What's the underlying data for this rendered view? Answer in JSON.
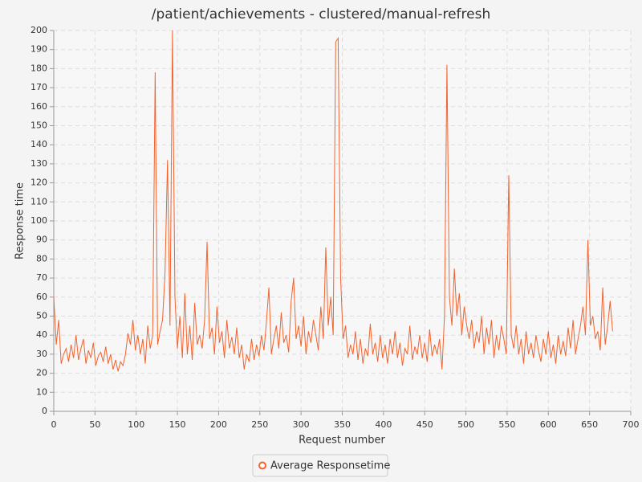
{
  "chart_data": {
    "type": "line",
    "title": "/patient/achievements - clustered/manual-refresh",
    "x_label": "Request number",
    "y_label": "Response time",
    "xlim": [
      0,
      700
    ],
    "xticks": [
      0,
      50,
      100,
      150,
      200,
      250,
      300,
      350,
      400,
      450,
      500,
      550,
      600,
      650,
      700
    ],
    "ylim": [
      0,
      200
    ],
    "yticks": [
      0,
      10,
      20,
      30,
      40,
      50,
      60,
      70,
      80,
      90,
      100,
      110,
      120,
      130,
      140,
      150,
      160,
      170,
      180,
      190,
      200
    ],
    "grid": true,
    "legend": "bottom",
    "x": [
      0,
      3,
      6,
      9,
      12,
      15,
      18,
      21,
      24,
      27,
      30,
      33,
      36,
      39,
      42,
      45,
      48,
      51,
      54,
      57,
      60,
      63,
      66,
      69,
      72,
      75,
      78,
      81,
      84,
      87,
      90,
      93,
      96,
      99,
      102,
      105,
      108,
      111,
      114,
      117,
      120,
      123,
      126,
      129,
      132,
      135,
      138,
      141,
      144,
      147,
      150,
      153,
      156,
      159,
      162,
      165,
      168,
      171,
      174,
      177,
      180,
      183,
      186,
      189,
      192,
      195,
      198,
      201,
      204,
      207,
      210,
      213,
      216,
      219,
      222,
      225,
      228,
      231,
      234,
      237,
      240,
      243,
      246,
      249,
      252,
      255,
      258,
      261,
      264,
      267,
      270,
      273,
      276,
      279,
      282,
      285,
      288,
      291,
      294,
      297,
      300,
      303,
      306,
      309,
      312,
      315,
      318,
      321,
      324,
      327,
      330,
      333,
      336,
      339,
      342,
      345,
      348,
      351,
      354,
      357,
      360,
      363,
      366,
      369,
      372,
      375,
      378,
      381,
      384,
      387,
      390,
      393,
      396,
      399,
      402,
      405,
      408,
      411,
      414,
      417,
      420,
      423,
      426,
      429,
      432,
      435,
      438,
      441,
      444,
      447,
      450,
      453,
      456,
      459,
      462,
      465,
      468,
      471,
      474,
      477,
      480,
      483,
      486,
      489,
      492,
      495,
      498,
      501,
      504,
      507,
      510,
      513,
      516,
      519,
      522,
      525,
      528,
      531,
      534,
      537,
      540,
      543,
      546,
      549,
      552,
      555,
      558,
      561,
      564,
      567,
      570,
      573,
      576,
      579,
      582,
      585,
      588,
      591,
      594,
      597,
      600,
      603,
      606,
      609,
      612,
      615,
      618,
      621,
      624,
      627,
      630,
      633,
      636,
      639,
      642,
      645,
      648,
      651,
      654,
      657,
      660,
      663,
      666,
      669,
      672,
      675,
      678
    ],
    "series": [
      {
        "name": "Average Responsetime",
        "color": "#f3622d",
        "values": [
          60,
          35,
          48,
          25,
          30,
          33,
          26,
          35,
          28,
          40,
          27,
          33,
          38,
          25,
          32,
          28,
          36,
          24,
          29,
          31,
          26,
          34,
          25,
          30,
          22,
          27,
          21,
          26,
          24,
          30,
          41,
          35,
          48,
          32,
          40,
          30,
          38,
          25,
          45,
          33,
          40,
          178,
          35,
          42,
          48,
          73,
          132,
          45,
          200,
          60,
          33,
          50,
          28,
          62,
          30,
          45,
          27,
          57,
          35,
          40,
          33,
          48,
          89,
          38,
          44,
          30,
          55,
          36,
          42,
          28,
          48,
          33,
          39,
          30,
          44,
          28,
          35,
          22,
          30,
          26,
          38,
          27,
          35,
          29,
          40,
          32,
          47,
          65,
          30,
          38,
          45,
          33,
          52,
          36,
          40,
          31,
          58,
          70,
          38,
          45,
          34,
          50,
          30,
          42,
          36,
          48,
          40,
          32,
          55,
          38,
          86,
          45,
          60,
          40,
          194,
          196,
          70,
          38,
          45,
          28,
          35,
          30,
          42,
          27,
          38,
          25,
          33,
          29,
          46,
          30,
          36,
          26,
          40,
          28,
          35,
          25,
          38,
          30,
          42,
          28,
          36,
          24,
          33,
          30,
          45,
          27,
          34,
          30,
          40,
          28,
          36,
          26,
          43,
          29,
          35,
          30,
          38,
          22,
          50,
          182,
          60,
          45,
          75,
          50,
          62,
          40,
          55,
          45,
          38,
          48,
          33,
          42,
          36,
          50,
          30,
          44,
          35,
          48,
          28,
          40,
          32,
          45,
          38,
          30,
          124,
          40,
          33,
          45,
          30,
          38,
          25,
          42,
          30,
          36,
          28,
          40,
          32,
          26,
          38,
          30,
          42,
          28,
          35,
          25,
          40,
          30,
          37,
          29,
          44,
          33,
          48,
          30,
          38,
          45,
          55,
          40,
          90,
          45,
          50,
          38,
          42,
          32,
          65,
          35,
          45,
          58,
          42
        ]
      }
    ]
  }
}
